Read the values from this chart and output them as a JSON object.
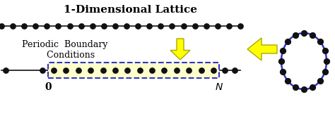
{
  "title": "1-Dimensional Lattice",
  "title_fontsize": 11,
  "bg_color": "#ffffff",
  "dot_color": "#111111",
  "dot_size": 28,
  "line_color": "#111111",
  "line_lw": 1.2,
  "box_color": "#ffffcc",
  "box_edge_color": "#3333cc",
  "arrow_color": "#ffff00",
  "arrow_edge_color": "#aaaa00",
  "circle_color": "#3333cc",
  "circle_lw": 1.8,
  "n_circle_dots": 16,
  "label_fontsize": 10,
  "pbc_fontsize": 9
}
